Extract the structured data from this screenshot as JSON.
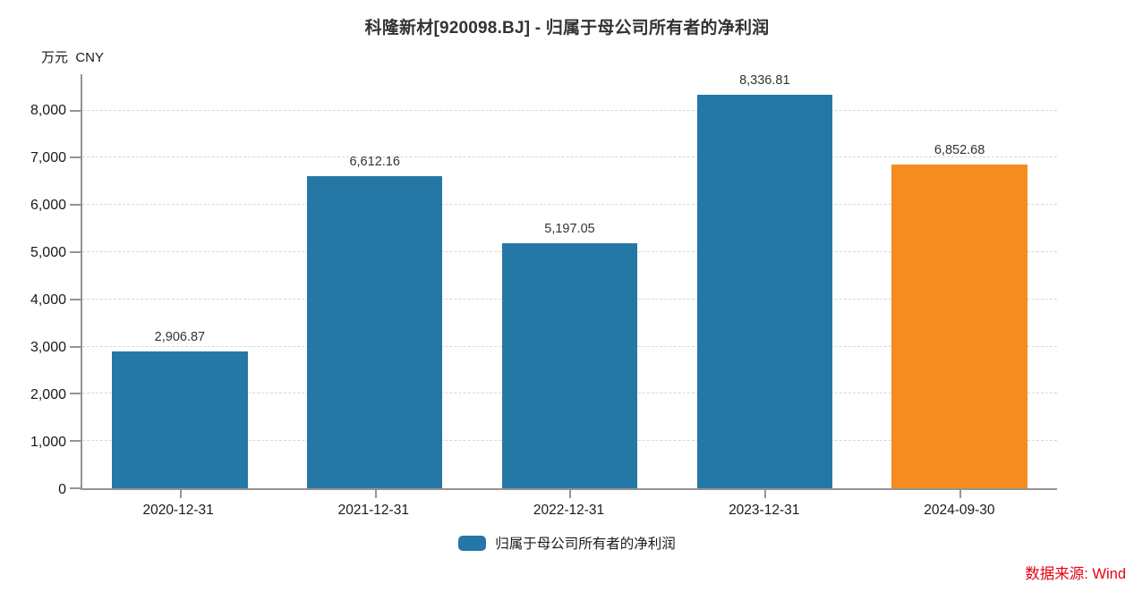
{
  "chart": {
    "title": "科隆新材[920098.BJ] - 归属于母公司所有者的净利润",
    "unit_label": "万元  CNY",
    "legend": {
      "label": "归属于母公司所有者的净利润",
      "swatch_color": "#2578a5"
    },
    "source_label": "数据来源: Wind",
    "source_color": "#e60012"
  },
  "chart_data": {
    "type": "bar",
    "title": "科隆新材[920098.BJ] - 归属于母公司所有者的净利润",
    "ylabel": "万元 CNY",
    "xlabel": "",
    "categories": [
      "2020-12-31",
      "2021-12-31",
      "2022-12-31",
      "2023-12-31",
      "2024-09-30"
    ],
    "series": [
      {
        "name": "归属于母公司所有者的净利润",
        "values": [
          2906.87,
          6612.16,
          5197.05,
          8336.81,
          6852.68
        ]
      }
    ],
    "values": [
      2906.87,
      6612.16,
      5197.05,
      8336.81,
      6852.68
    ],
    "value_labels": [
      "2,906.87",
      "6,612.16",
      "5,197.05",
      "8,336.81",
      "6,852.68"
    ],
    "bar_colors": [
      "#2578a5",
      "#2578a5",
      "#2578a5",
      "#2578a5",
      "#f68b1f"
    ],
    "yticks": [
      0,
      1000,
      2000,
      3000,
      4000,
      5000,
      6000,
      7000,
      8000
    ],
    "ytick_labels": [
      "0",
      "1,000",
      "2,000",
      "3,000",
      "4,000",
      "5,000",
      "6,000",
      "7,000",
      "8,000"
    ],
    "ylim": [
      0,
      8770
    ],
    "grid": "horizontal-dashed",
    "legend_position": "bottom-center",
    "source": "数据来源: Wind"
  }
}
